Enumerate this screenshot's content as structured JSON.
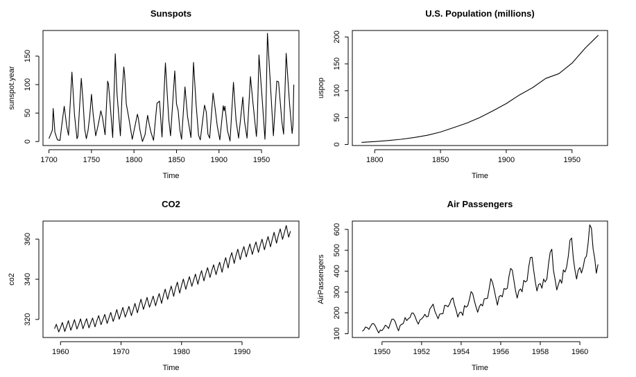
{
  "chart_data": [
    {
      "type": "line",
      "title": "Sunspots",
      "xlabel": "Time",
      "ylabel": "sunspot.year",
      "xlim": [
        1700,
        1988
      ],
      "ylim": [
        0,
        190
      ],
      "xticks": [
        1700,
        1750,
        1800,
        1850,
        1900,
        1950
      ],
      "yticks": [
        0,
        50,
        100,
        150
      ],
      "series": [
        {
          "x": [
            1700,
            1704,
            1705,
            1707,
            1710,
            1713,
            1715,
            1718,
            1721,
            1723,
            1727,
            1730,
            1733,
            1734,
            1736,
            1738,
            1740,
            1742,
            1744,
            1746,
            1748,
            1750,
            1752,
            1755,
            1758,
            1761,
            1763,
            1766,
            1769,
            1770,
            1772,
            1775,
            1778,
            1780,
            1784,
            1786,
            1788,
            1789,
            1791,
            1794,
            1798,
            1804,
            1805,
            1807,
            1810,
            1813,
            1816,
            1818,
            1820,
            1823,
            1827,
            1830,
            1833,
            1837,
            1839,
            1841,
            1843,
            1848,
            1850,
            1852,
            1854,
            1856,
            1860,
            1863,
            1867,
            1870,
            1873,
            1876,
            1878,
            1883,
            1885,
            1887,
            1889,
            1893,
            1895,
            1898,
            1901,
            1905,
            1906,
            1907,
            1908,
            1910,
            1913,
            1917,
            1920,
            1923,
            1928,
            1930,
            1933,
            1937,
            1940,
            1944,
            1945,
            1947,
            1951,
            1954,
            1955,
            1957,
            1960,
            1964,
            1968,
            1970,
            1974,
            1976,
            1979,
            1983,
            1986,
            1987,
            1988
          ],
          "y": [
            5,
            20,
            58,
            16,
            3,
            2,
            28,
            62,
            26,
            11,
            122,
            47,
            5,
            9,
            60,
            111,
            73,
            22,
            5,
            20,
            45,
            83,
            48,
            10,
            30,
            54,
            42,
            12,
            106,
            101,
            66,
            7,
            154,
            84,
            10,
            83,
            131,
            118,
            66,
            41,
            4,
            48,
            42,
            20,
            0,
            12,
            46,
            30,
            16,
            2,
            67,
            71,
            8,
            138,
            86,
            38,
            10,
            124,
            66,
            54,
            20,
            4,
            96,
            44,
            7,
            139,
            66,
            11,
            3,
            64,
            52,
            13,
            6,
            85,
            64,
            27,
            3,
            63,
            54,
            62,
            48,
            19,
            1,
            104,
            38,
            6,
            78,
            36,
            6,
            114,
            67,
            9,
            33,
            152,
            70,
            4,
            38,
            190,
            112,
            10,
            106,
            105,
            34,
            13,
            155,
            66,
            14,
            29,
            100
          ]
        }
      ]
    },
    {
      "type": "line",
      "title": "U.S. Population (millions)",
      "xlabel": "Time",
      "ylabel": "uspop",
      "xlim": [
        1790,
        1970
      ],
      "ylim": [
        0,
        205
      ],
      "xticks": [
        1800,
        1850,
        1900,
        1950
      ],
      "yticks": [
        0,
        50,
        100,
        150,
        200
      ],
      "series": [
        {
          "x": [
            1790,
            1800,
            1810,
            1820,
            1830,
            1840,
            1850,
            1860,
            1870,
            1880,
            1890,
            1900,
            1910,
            1920,
            1930,
            1940,
            1950,
            1960,
            1970
          ],
          "y": [
            3.93,
            5.31,
            7.24,
            9.64,
            12.9,
            17.1,
            23.2,
            31.4,
            39.8,
            50.2,
            62.9,
            76.0,
            92.0,
            105.7,
            122.8,
            131.7,
            151.3,
            179.3,
            203.2
          ]
        }
      ]
    },
    {
      "type": "line",
      "title": "CO2",
      "xlabel": "Time",
      "ylabel": "co2",
      "xlim": [
        1959,
        1998
      ],
      "ylim": [
        313,
        368
      ],
      "xticks": [
        1960,
        1970,
        1980,
        1990
      ],
      "yticks": [
        320,
        340,
        360
      ],
      "series": [
        {
          "x": [
            1959.0,
            1959.3,
            1959.7,
            1960.0,
            1960.3,
            1960.7,
            1961.0,
            1961.3,
            1961.7,
            1962.0,
            1962.3,
            1962.7,
            1963.0,
            1963.3,
            1963.7,
            1964.0,
            1964.3,
            1964.7,
            1965.0,
            1965.3,
            1965.7,
            1966.0,
            1966.3,
            1966.7,
            1967.0,
            1967.3,
            1967.7,
            1968.0,
            1968.3,
            1968.7,
            1969.0,
            1969.3,
            1969.7,
            1970.0,
            1970.3,
            1970.7,
            1971.0,
            1971.3,
            1971.7,
            1972.0,
            1972.3,
            1972.7,
            1973.0,
            1973.3,
            1973.7,
            1974.0,
            1974.3,
            1974.7,
            1975.0,
            1975.3,
            1975.7,
            1976.0,
            1976.3,
            1976.7,
            1977.0,
            1977.3,
            1977.7,
            1978.0,
            1978.3,
            1978.7,
            1979.0,
            1979.3,
            1979.7,
            1980.0,
            1980.3,
            1980.7,
            1981.0,
            1981.3,
            1981.7,
            1982.0,
            1982.3,
            1982.7,
            1983.0,
            1983.3,
            1983.7,
            1984.0,
            1984.3,
            1984.7,
            1985.0,
            1985.3,
            1985.7,
            1986.0,
            1986.3,
            1986.7,
            1987.0,
            1987.3,
            1987.7,
            1988.0,
            1988.3,
            1988.7,
            1989.0,
            1989.3,
            1989.7,
            1990.0,
            1990.3,
            1990.7,
            1991.0,
            1991.3,
            1991.7,
            1992.0,
            1992.3,
            1992.7,
            1993.0,
            1993.3,
            1993.7,
            1994.0,
            1994.3,
            1994.7,
            1995.0,
            1995.3,
            1995.7,
            1996.0,
            1996.3,
            1996.7,
            1997.0,
            1997.3,
            1997.7,
            1998.0
          ],
          "y": [
            315.4,
            317.6,
            313.8,
            315.9,
            318.5,
            314.0,
            316.6,
            319.4,
            314.6,
            317.1,
            319.9,
            315.2,
            317.5,
            320.3,
            315.4,
            317.9,
            320.4,
            315.8,
            318.4,
            320.7,
            316.3,
            319.3,
            321.9,
            317.4,
            320.0,
            322.5,
            318.0,
            320.8,
            323.5,
            319.0,
            321.7,
            324.9,
            320.1,
            323.0,
            326.0,
            321.2,
            323.8,
            326.5,
            321.9,
            324.8,
            328.0,
            323.3,
            327.0,
            330.1,
            325.0,
            327.9,
            331.0,
            326.1,
            328.6,
            331.6,
            326.8,
            330.0,
            332.9,
            328.0,
            332.0,
            335.1,
            330.0,
            333.6,
            336.6,
            331.5,
            335.5,
            338.6,
            333.1,
            337.0,
            340.1,
            335.0,
            338.3,
            341.3,
            336.5,
            339.6,
            342.6,
            337.5,
            341.4,
            344.3,
            339.2,
            342.8,
            345.8,
            340.9,
            344.3,
            347.2,
            342.3,
            345.7,
            348.5,
            343.5,
            347.6,
            350.8,
            345.6,
            350.5,
            353.3,
            347.9,
            352.0,
            355.0,
            349.8,
            353.5,
            356.3,
            351.1,
            354.6,
            357.6,
            352.4,
            355.8,
            358.6,
            353.4,
            356.9,
            360.0,
            354.7,
            358.2,
            361.3,
            356.2,
            360.0,
            363.4,
            358.0,
            361.9,
            365.1,
            359.9,
            363.3,
            366.8,
            361.0,
            364.0
          ]
        }
      ]
    },
    {
      "type": "line",
      "title": "Air Passengers",
      "xlabel": "Time",
      "ylabel": "AirPassengers",
      "xlim": [
        1949,
        1961
      ],
      "ylim": [
        100,
        622
      ],
      "xticks": [
        1950,
        1952,
        1954,
        1956,
        1958,
        1960
      ],
      "yticks": [
        100,
        200,
        300,
        400,
        500,
        600
      ],
      "series": [
        {
          "x": [
            1949.0,
            1949.083,
            1949.167,
            1949.25,
            1949.333,
            1949.417,
            1949.5,
            1949.583,
            1949.667,
            1949.75,
            1949.833,
            1949.917,
            1950.0,
            1950.083,
            1950.167,
            1950.25,
            1950.333,
            1950.417,
            1950.5,
            1950.583,
            1950.667,
            1950.75,
            1950.833,
            1950.917,
            1951.0,
            1951.083,
            1951.167,
            1951.25,
            1951.333,
            1951.417,
            1951.5,
            1951.583,
            1951.667,
            1951.75,
            1951.833,
            1951.917,
            1952.0,
            1952.083,
            1952.167,
            1952.25,
            1952.333,
            1952.417,
            1952.5,
            1952.583,
            1952.667,
            1952.75,
            1952.833,
            1952.917,
            1953.0,
            1953.083,
            1953.167,
            1953.25,
            1953.333,
            1953.417,
            1953.5,
            1953.583,
            1953.667,
            1953.75,
            1953.833,
            1953.917,
            1954.0,
            1954.083,
            1954.167,
            1954.25,
            1954.333,
            1954.417,
            1954.5,
            1954.583,
            1954.667,
            1954.75,
            1954.833,
            1954.917,
            1955.0,
            1955.083,
            1955.167,
            1955.25,
            1955.333,
            1955.417,
            1955.5,
            1955.583,
            1955.667,
            1955.75,
            1955.833,
            1955.917,
            1956.0,
            1956.083,
            1956.167,
            1956.25,
            1956.333,
            1956.417,
            1956.5,
            1956.583,
            1956.667,
            1956.75,
            1956.833,
            1956.917,
            1957.0,
            1957.083,
            1957.167,
            1957.25,
            1957.333,
            1957.417,
            1957.5,
            1957.583,
            1957.667,
            1957.75,
            1957.833,
            1957.917,
            1958.0,
            1958.083,
            1958.167,
            1958.25,
            1958.333,
            1958.417,
            1958.5,
            1958.583,
            1958.667,
            1958.75,
            1958.833,
            1958.917,
            1959.0,
            1959.083,
            1959.167,
            1959.25,
            1959.333,
            1959.417,
            1959.5,
            1959.583,
            1959.667,
            1959.75,
            1959.833,
            1959.917,
            1960.0,
            1960.083,
            1960.167,
            1960.25,
            1960.333,
            1960.417,
            1960.5,
            1960.583,
            1960.667,
            1960.75,
            1960.833,
            1960.917
          ],
          "y": [
            112,
            118,
            132,
            129,
            121,
            135,
            148,
            148,
            136,
            119,
            104,
            118,
            115,
            126,
            141,
            135,
            125,
            149,
            170,
            170,
            158,
            133,
            114,
            140,
            145,
            150,
            178,
            163,
            172,
            178,
            199,
            199,
            184,
            162,
            146,
            166,
            171,
            180,
            193,
            181,
            183,
            218,
            230,
            242,
            209,
            191,
            172,
            194,
            196,
            196,
            236,
            235,
            229,
            243,
            264,
            272,
            237,
            211,
            180,
            201,
            204,
            188,
            235,
            227,
            234,
            264,
            302,
            293,
            259,
            229,
            203,
            229,
            242,
            233,
            267,
            269,
            270,
            315,
            364,
            347,
            312,
            274,
            237,
            278,
            284,
            277,
            317,
            313,
            318,
            374,
            413,
            405,
            355,
            306,
            271,
            306,
            315,
            301,
            356,
            348,
            355,
            422,
            465,
            467,
            404,
            347,
            305,
            336,
            340,
            318,
            362,
            348,
            363,
            435,
            491,
            505,
            404,
            359,
            310,
            337,
            360,
            342,
            406,
            396,
            420,
            472,
            548,
            559,
            463,
            407,
            362,
            405,
            417,
            391,
            419,
            461,
            472,
            535,
            622,
            606,
            508,
            461,
            390,
            432
          ]
        }
      ]
    }
  ]
}
